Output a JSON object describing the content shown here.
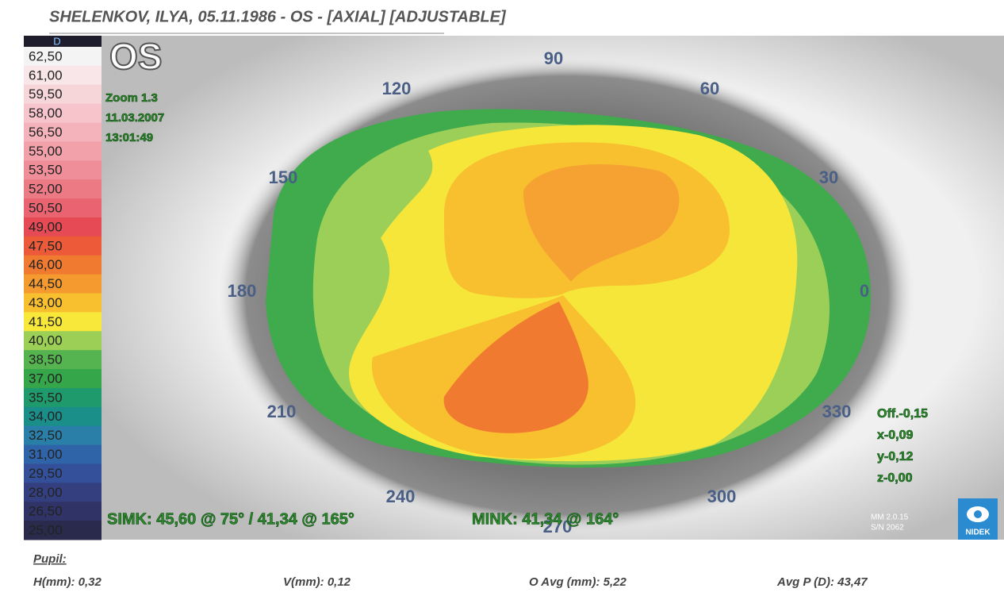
{
  "header": {
    "title": "SHELENKOV, ILYA, 05.11.1986 - OS - [AXIAL] [ADJUSTABLE]"
  },
  "scale": {
    "unit": "D",
    "steps": [
      {
        "label": "62,50",
        "color": "#f4f4f4"
      },
      {
        "label": "61,00",
        "color": "#f8e6e8"
      },
      {
        "label": "59,50",
        "color": "#f7d6da"
      },
      {
        "label": "58,00",
        "color": "#f6c4ca"
      },
      {
        "label": "56,50",
        "color": "#f4b2ba"
      },
      {
        "label": "55,00",
        "color": "#f2a0a9"
      },
      {
        "label": "53,50",
        "color": "#ef8e98"
      },
      {
        "label": "52,00",
        "color": "#ec7a85"
      },
      {
        "label": "50,50",
        "color": "#e96470"
      },
      {
        "label": "49,00",
        "color": "#e64b55"
      },
      {
        "label": "47,50",
        "color": "#ec5a3a"
      },
      {
        "label": "46,00",
        "color": "#f07a30"
      },
      {
        "label": "44,50",
        "color": "#f59a2e"
      },
      {
        "label": "43,00",
        "color": "#f8bf2f"
      },
      {
        "label": "41,50",
        "color": "#f7e83a"
      },
      {
        "label": "40,00",
        "color": "#9ccf55"
      },
      {
        "label": "38,50",
        "color": "#55b450"
      },
      {
        "label": "37,00",
        "color": "#36a64b"
      },
      {
        "label": "35,50",
        "color": "#1f9a6c"
      },
      {
        "label": "34,00",
        "color": "#1a8f8a"
      },
      {
        "label": "32,50",
        "color": "#2a7fa8"
      },
      {
        "label": "31,00",
        "color": "#2f64a8"
      },
      {
        "label": "29,50",
        "color": "#34509a"
      },
      {
        "label": "28,00",
        "color": "#343f80"
      },
      {
        "label": "26,50",
        "color": "#2f3366"
      },
      {
        "label": "25,00",
        "color": "#292a4c"
      }
    ]
  },
  "map": {
    "eye": "OS",
    "info": [
      "Zoom 1.3",
      "11.03.2007",
      "13:01:49"
    ],
    "angles": [
      "90",
      "120",
      "60",
      "150",
      "30",
      "180",
      "0",
      "210",
      "330",
      "240",
      "270",
      "300"
    ],
    "simk": "SIMK: 45,60 @ 75° / 41,34 @ 165°",
    "mink": "MINK: 41,34 @ 164°",
    "offsets": [
      "Off.-0,15",
      "x-0,09",
      "y-0,12",
      "z-0,00"
    ],
    "version": [
      "MM 2.0.15",
      "S/N 2062"
    ],
    "logo": "NIDEK"
  },
  "footer": {
    "pupil": "Pupil:",
    "stats": [
      "H(mm): 0,32",
      "V(mm): 0,12",
      "O Avg (mm): 5,22",
      "Avg P (D): 43,47"
    ]
  }
}
